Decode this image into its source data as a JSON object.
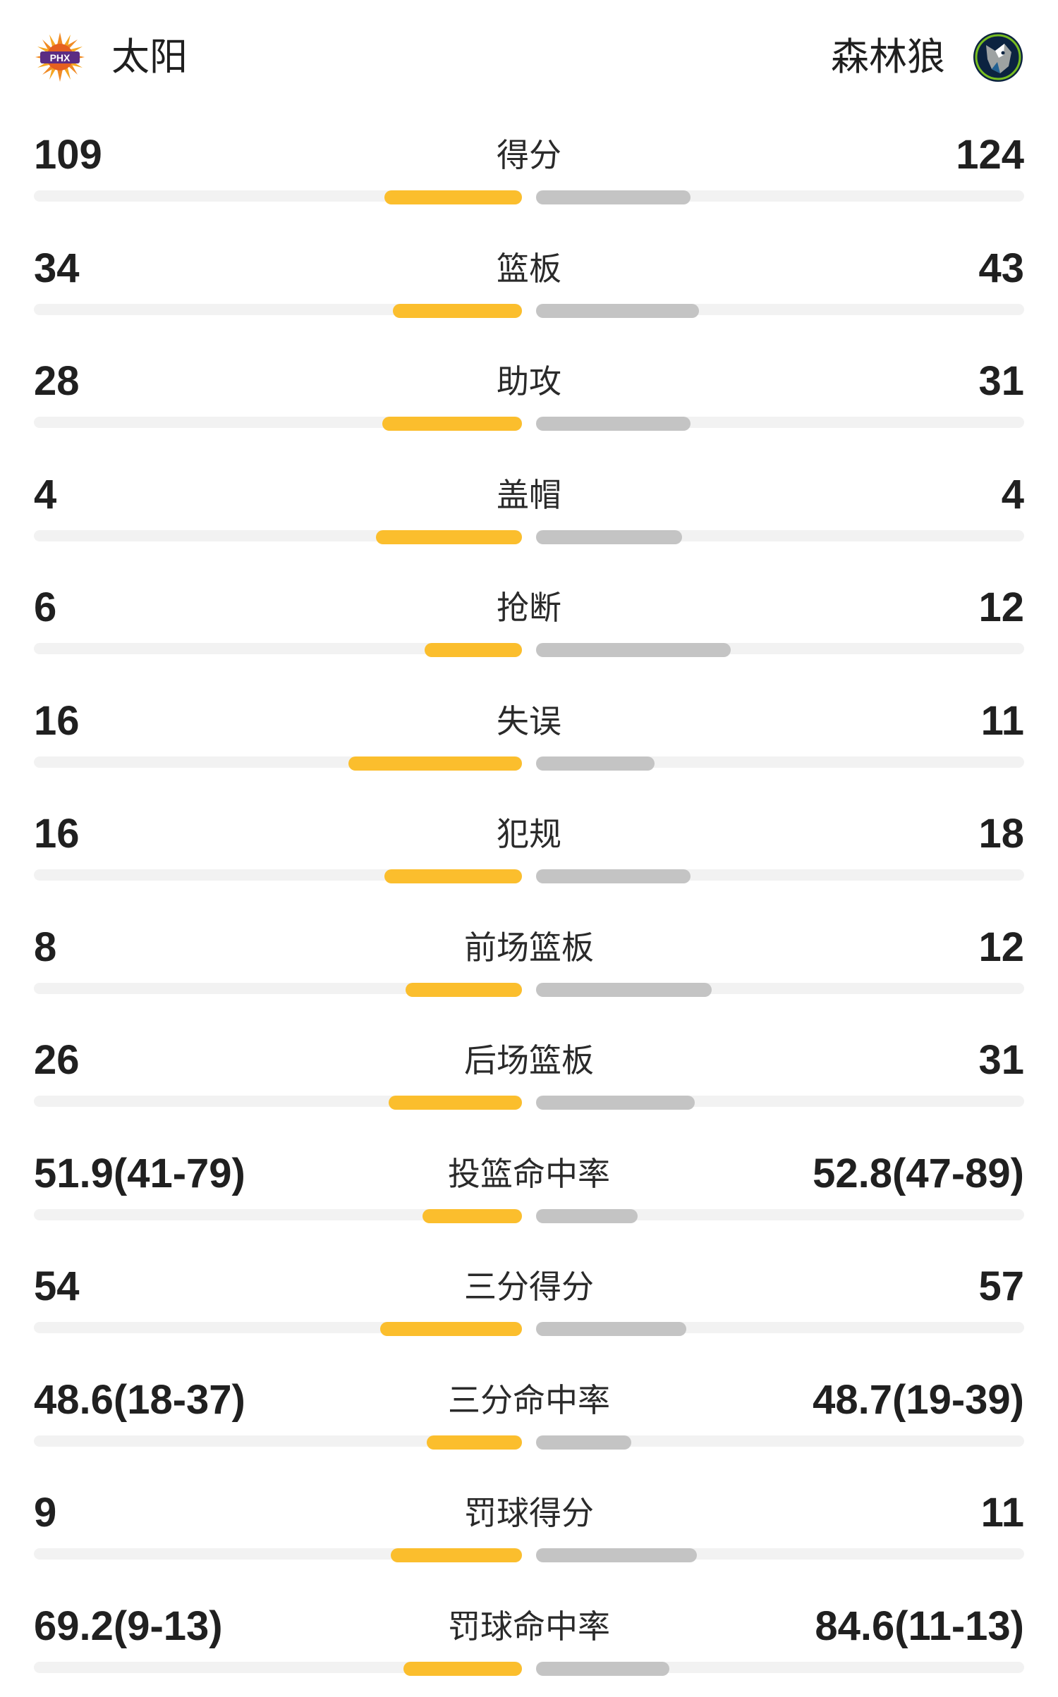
{
  "header": {
    "home_team": "太阳",
    "away_team": "森林狼",
    "home_logo_text": "PHX",
    "home_logo_icon": "suns-logo-icon",
    "away_logo_icon": "timberwolves-logo-icon"
  },
  "colors": {
    "home_bar": "#fbbe2d",
    "away_bar": "#c4c4c4",
    "track": "#f2f2f2"
  },
  "stats": [
    {
      "label": "得分",
      "left": "109",
      "right": "124",
      "left_fill": 0.65,
      "right_fill": 0.73
    },
    {
      "label": "篮板",
      "left": "34",
      "right": "43",
      "left_fill": 0.61,
      "right_fill": 0.77
    },
    {
      "label": "助攻",
      "left": "28",
      "right": "31",
      "left_fill": 0.66,
      "right_fill": 0.73
    },
    {
      "label": "盖帽",
      "left": "4",
      "right": "4",
      "left_fill": 0.69,
      "right_fill": 0.69
    },
    {
      "label": "抢断",
      "left": "6",
      "right": "12",
      "left_fill": 0.46,
      "right_fill": 0.92
    },
    {
      "label": "失误",
      "left": "16",
      "right": "11",
      "left_fill": 0.82,
      "right_fill": 0.56
    },
    {
      "label": "犯规",
      "left": "16",
      "right": "18",
      "left_fill": 0.65,
      "right_fill": 0.73
    },
    {
      "label": "前场篮板",
      "left": "8",
      "right": "12",
      "left_fill": 0.55,
      "right_fill": 0.83
    },
    {
      "label": "后场篮板",
      "left": "26",
      "right": "31",
      "left_fill": 0.63,
      "right_fill": 0.75
    },
    {
      "label": "投篮命中率",
      "left": "51.9(41-79)",
      "right": "52.8(47-89)",
      "left_fill": 0.47,
      "right_fill": 0.48
    },
    {
      "label": "三分得分",
      "left": "54",
      "right": "57",
      "left_fill": 0.67,
      "right_fill": 0.71
    },
    {
      "label": "三分命中率",
      "left": "48.6(18-37)",
      "right": "48.7(19-39)",
      "left_fill": 0.45,
      "right_fill": 0.45
    },
    {
      "label": "罚球得分",
      "left": "9",
      "right": "11",
      "left_fill": 0.62,
      "right_fill": 0.76
    },
    {
      "label": "罚球命中率",
      "left": "69.2(9-13)",
      "right": "84.6(11-13)",
      "left_fill": 0.56,
      "right_fill": 0.63
    }
  ]
}
